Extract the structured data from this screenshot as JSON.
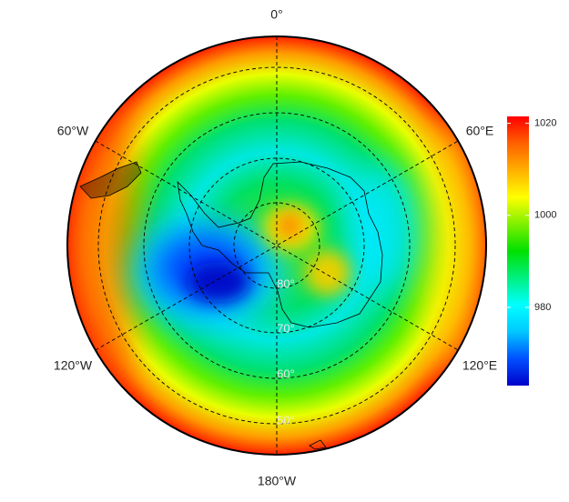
{
  "map": {
    "meridian_labels": [
      "0°",
      "60°E",
      "120°E",
      "180°W",
      "120°W",
      "60°W"
    ],
    "latitude_labels": [
      "80°",
      "70°",
      "60°",
      "50°"
    ]
  },
  "colorbar": {
    "lim": [
      963,
      1021.5
    ],
    "ticks": [
      980,
      1000,
      1020
    ],
    "colors": [
      "#0000c8",
      "#0050ff",
      "#00c8ff",
      "#00ffff",
      "#00f080",
      "#00e000",
      "#80f000",
      "#ffff00",
      "#ffb000",
      "#ff6000",
      "#ff0000"
    ]
  }
}
